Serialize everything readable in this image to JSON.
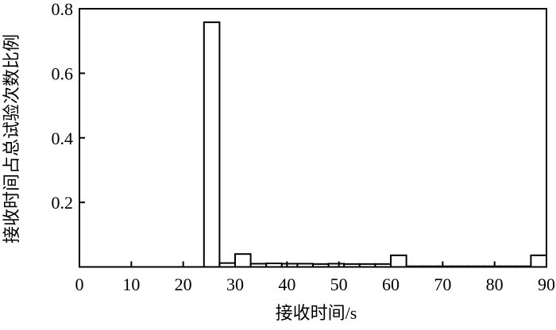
{
  "chart_data": {
    "type": "bar",
    "title": "",
    "xlabel": "接收时间/s",
    "ylabel": "接收时间占总试验次数比例",
    "xlim": [
      0,
      90
    ],
    "ylim": [
      0,
      0.8
    ],
    "xticks": [
      0,
      10,
      20,
      30,
      40,
      50,
      60,
      70,
      80,
      90
    ],
    "yticks": [
      0.2,
      0.4,
      0.6,
      0.8
    ],
    "bin_width": 3,
    "bins_start": [
      24,
      27,
      30,
      33,
      36,
      39,
      42,
      45,
      48,
      51,
      54,
      57,
      60,
      63,
      66,
      69,
      72,
      75,
      78,
      81,
      84,
      87
    ],
    "values": [
      0.758,
      0.012,
      0.04,
      0.01,
      0.011,
      0.01,
      0.01,
      0.009,
      0.01,
      0.009,
      0.009,
      0.009,
      0.036,
      0.002,
      0.002,
      0.002,
      0.002,
      0.002,
      0.002,
      0.002,
      0.002,
      0.036
    ],
    "grid": false,
    "bar_fill": "#ffffff",
    "bar_stroke": "#000000"
  }
}
